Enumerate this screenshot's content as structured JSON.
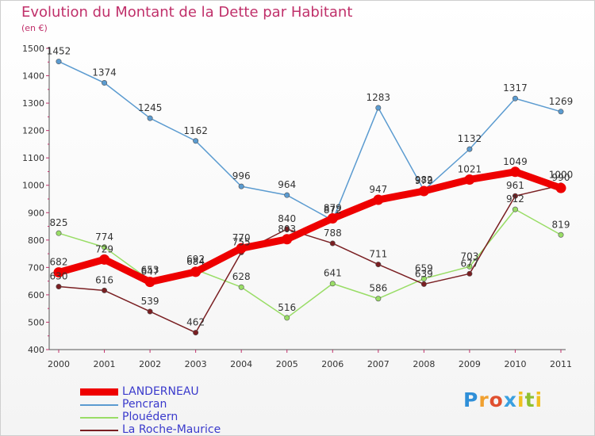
{
  "chart_data": {
    "type": "line",
    "title": "Evolution du Montant de la Dette par Habitant",
    "subtitle": "(en €)",
    "x": [
      "2000",
      "2001",
      "2002",
      "2003",
      "2004",
      "2005",
      "2006",
      "2007",
      "2008",
      "2009",
      "2010",
      "2011"
    ],
    "ylim": [
      400,
      1500
    ],
    "yticks": [
      400,
      500,
      600,
      700,
      800,
      900,
      1000,
      1100,
      1200,
      1300,
      1400,
      1500
    ],
    "grid": false,
    "legend_position": "bottom-left",
    "series": [
      {
        "name": "Pencran",
        "color": "#5b9bd0",
        "values": [
          1452,
          1374,
          1245,
          1162,
          996,
          964,
          872,
          1283,
          982,
          1132,
          1317,
          1269
        ]
      },
      {
        "name": "Plouédern",
        "color": "#99dd66",
        "values": [
          825,
          774,
          653,
          692,
          628,
          516,
          641,
          586,
          659,
          703,
          912,
          819
        ]
      },
      {
        "name": "La Roche-Maurice",
        "color": "#7a1f22",
        "values": [
          630,
          616,
          539,
          462,
          755,
          840,
          788,
          711,
          639,
          677,
          961,
          1000
        ]
      },
      {
        "name": "LANDERNEAU",
        "color": "#ee0000",
        "values": [
          682,
          729,
          647,
          684,
          770,
          803,
          879,
          947,
          979,
          1021,
          1049,
          990
        ]
      }
    ],
    "data_labels": [
      [
        "1452",
        "1374",
        "1245",
        "1162",
        "996",
        "964",
        "872",
        "1283",
        "982",
        "1132",
        "1317",
        "1269"
      ],
      [
        "825",
        "774",
        "653",
        "692",
        "628",
        "516",
        "641",
        "586",
        "659",
        "703",
        "912",
        "819"
      ],
      [
        "630",
        "616",
        "539",
        "462",
        "755",
        "840",
        "788",
        "711",
        "639",
        "677",
        "961",
        "1000"
      ],
      [
        "682",
        "729",
        "647",
        "684",
        "770",
        "803",
        "879",
        "947",
        "979",
        "1021",
        "1049",
        "990"
      ]
    ]
  },
  "legend": [
    {
      "label": "LANDERNEAU",
      "color": "#ee0000"
    },
    {
      "label": "Pencran",
      "color": "#5b9bd0"
    },
    {
      "label": "Plouédern",
      "color": "#99dd66"
    },
    {
      "label": "La Roche-Maurice",
      "color": "#7a1f22"
    }
  ],
  "logo": {
    "text": "Proxiti"
  }
}
